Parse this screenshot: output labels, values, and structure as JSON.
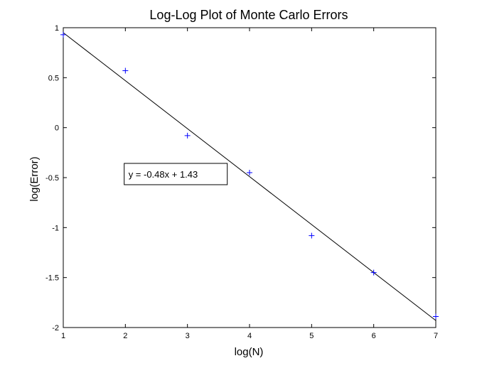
{
  "chart_data": {
    "type": "scatter",
    "title": "Log-Log Plot of Monte Carlo Errors",
    "xlabel": "log(N)",
    "ylabel": "log(Error)",
    "xlim": [
      1,
      7
    ],
    "ylim": [
      -2,
      1
    ],
    "xticks": [
      1,
      2,
      3,
      4,
      5,
      6,
      7
    ],
    "yticks": [
      1,
      0.5,
      0,
      -0.5,
      -1,
      -1.5,
      -2
    ],
    "ytick_labels": [
      "1",
      "0.5",
      "0",
      "-0.5",
      "-1",
      "-1.5",
      "-2"
    ],
    "grid": false,
    "series": [
      {
        "marker": "+",
        "color": "#0000ff",
        "x": [
          1,
          2,
          3,
          4,
          5,
          6,
          7
        ],
        "y": [
          0.93,
          0.57,
          -0.08,
          -0.45,
          -1.08,
          -1.45,
          -1.89
        ]
      }
    ],
    "fit_line": {
      "slope": -0.48,
      "intercept": 1.43,
      "color": "#000000"
    },
    "annotation": {
      "text": "y = -0.48x + 1.43",
      "x": 2.05,
      "y": -0.45
    }
  }
}
